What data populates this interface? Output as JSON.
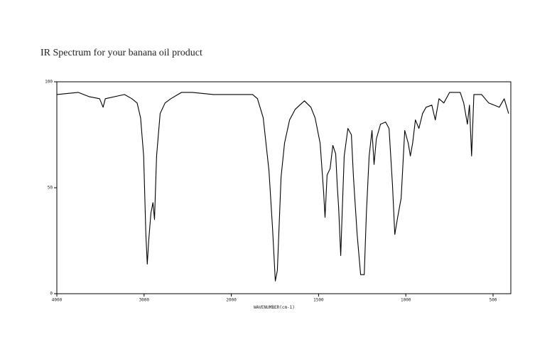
{
  "chart_data": {
    "type": "line",
    "title": "IR Spectrum for your banana oil product",
    "x_label": "WAVENUMBER(cm-1)",
    "color": "#000000",
    "xlim": [
      4000,
      400
    ],
    "xticks": [
      4000,
      3000,
      2000,
      1500,
      1000,
      500
    ],
    "ylim": [
      0,
      100
    ],
    "yticks": [
      0,
      50,
      100
    ],
    "x": [
      4000,
      3755,
      3630,
      3510,
      3470,
      3445,
      3225,
      3140,
      3080,
      3040,
      3005,
      2980,
      2963,
      2947,
      2922,
      2898,
      2880,
      2857,
      2816,
      2760,
      2694,
      2571,
      2449,
      2204,
      1980,
      1878,
      1850,
      1817,
      1784,
      1764,
      1748,
      1736,
      1715,
      1695,
      1666,
      1634,
      1581,
      1544,
      1520,
      1491,
      1471,
      1463,
      1451,
      1434,
      1418,
      1402,
      1393,
      1385,
      1373,
      1365,
      1353,
      1332,
      1312,
      1300,
      1279,
      1259,
      1238,
      1226,
      1210,
      1194,
      1182,
      1169,
      1145,
      1116,
      1096,
      1076,
      1063,
      1047,
      1027,
      1006,
      986,
      974,
      961,
      945,
      925,
      904,
      884,
      851,
      831,
      810,
      782,
      749,
      688,
      668,
      647,
      635,
      623,
      610,
      566,
      525,
      464,
      436,
      411
    ],
    "values": [
      94,
      95,
      93,
      92,
      88,
      92,
      94,
      92,
      90,
      83,
      65,
      28,
      14,
      25,
      38,
      43,
      35,
      65,
      85,
      90,
      92,
      95,
      95,
      94,
      94,
      94,
      92,
      83,
      58,
      31,
      6,
      11,
      55,
      71,
      82,
      87,
      91,
      88,
      83,
      71,
      48,
      36,
      56,
      59,
      70,
      66,
      51,
      41,
      18,
      38,
      65,
      78,
      75,
      55,
      28,
      9,
      9,
      38,
      65,
      77,
      61,
      73,
      80,
      81,
      78,
      51,
      28,
      36,
      45,
      77,
      71,
      65,
      71,
      82,
      78,
      85,
      88,
      89,
      82,
      92,
      90,
      95,
      95,
      90,
      80,
      89,
      65,
      94,
      94,
      90,
      88,
      92,
      85
    ]
  }
}
